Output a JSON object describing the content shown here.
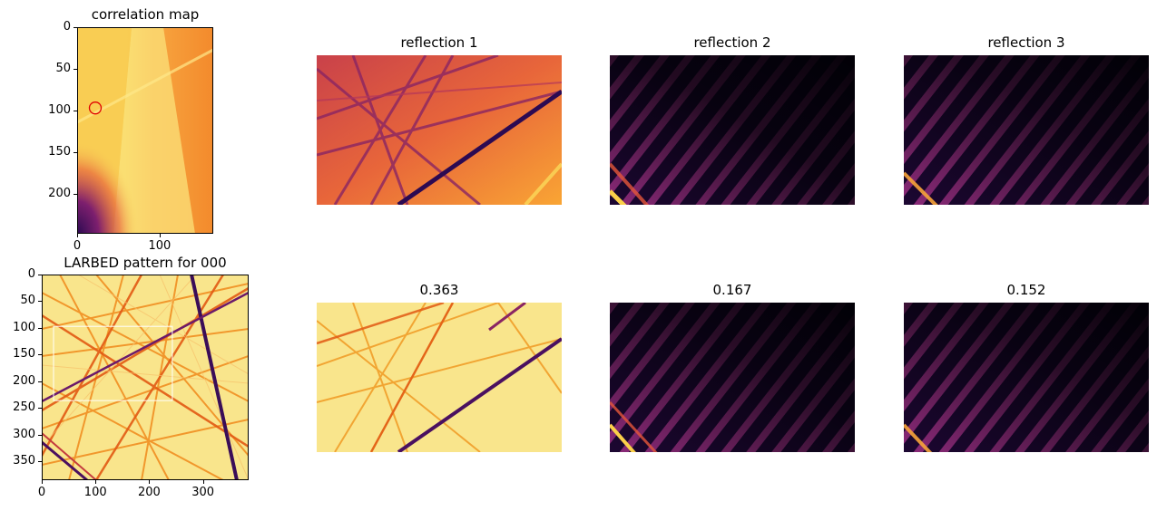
{
  "colors": {
    "colormap": "inferno",
    "marker_circle": "#e00000",
    "roi_box": "#ffffff"
  },
  "correlation_map": {
    "title": "correlation map",
    "xticks": [
      "0",
      "100"
    ],
    "yticks": [
      "0",
      "50",
      "100",
      "150",
      "200"
    ],
    "marker": {
      "x": 22,
      "y": 97
    }
  },
  "larbed": {
    "title": "LARBED pattern for 000",
    "xticks": [
      "0",
      "100",
      "200",
      "300"
    ],
    "yticks": [
      "0",
      "50",
      "100",
      "150",
      "200",
      "250",
      "300",
      "350"
    ],
    "roi": {
      "x0": 22,
      "x1": 243,
      "y0": 97,
      "y1": 236
    }
  },
  "reflections": {
    "titles": [
      "reflection 1",
      "reflection 2",
      "reflection 3"
    ],
    "scores": [
      "0.363",
      "0.167",
      "0.152"
    ]
  },
  "chart_data": [
    {
      "type": "heatmap",
      "title": "correlation map",
      "xlim": [
        0,
        165
      ],
      "ylim": [
        248,
        0
      ],
      "colormap": "inferno",
      "marker": {
        "shape": "circle",
        "x": 22,
        "y": 97
      }
    },
    {
      "type": "heatmap",
      "title": "LARBED pattern for 000",
      "xlim": [
        0,
        385
      ],
      "ylim": [
        385,
        0
      ],
      "colormap": "inferno",
      "roi": {
        "x": [
          22,
          243
        ],
        "y": [
          97,
          236
        ]
      }
    },
    {
      "type": "heatmap",
      "title": "reflection 1"
    },
    {
      "type": "heatmap",
      "title": "reflection 2"
    },
    {
      "type": "heatmap",
      "title": "reflection 3"
    },
    {
      "type": "heatmap",
      "title": "0.363"
    },
    {
      "type": "heatmap",
      "title": "0.167"
    },
    {
      "type": "heatmap",
      "title": "0.152"
    }
  ]
}
